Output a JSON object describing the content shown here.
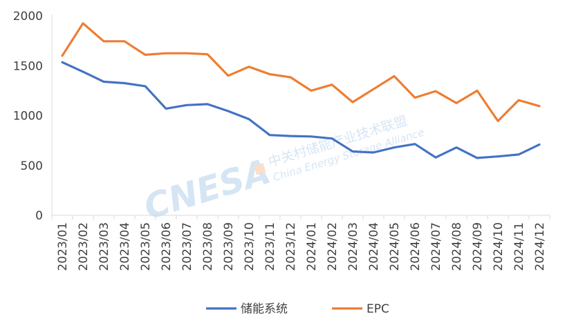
{
  "chart_data": {
    "type": "line",
    "title": "",
    "xlabel": "",
    "ylabel": "",
    "categories": [
      "2023/01",
      "2023/02",
      "2023/03",
      "2023/04",
      "2023/05",
      "2023/06",
      "2023/07",
      "2023/08",
      "2023/09",
      "2023/10",
      "2023/11",
      "2023/12",
      "2024/01",
      "2024/02",
      "2024/03",
      "2024/04",
      "2024/05",
      "2024/06",
      "2024/07",
      "2024/08",
      "2024/09",
      "2024/10",
      "2024/11",
      "2024/12"
    ],
    "ylim": [
      0,
      2000
    ],
    "yticks": [
      0,
      500,
      1000,
      1500,
      2000
    ],
    "grid": false,
    "legend_position": "bottom",
    "series": [
      {
        "name": "储能系统",
        "color": "#4472C4",
        "values": [
          1535,
          1440,
          1340,
          1325,
          1295,
          1070,
          1105,
          1115,
          1045,
          965,
          805,
          795,
          790,
          770,
          640,
          630,
          680,
          715,
          580,
          680,
          575,
          590,
          610,
          710
        ]
      },
      {
        "name": "EPC",
        "color": "#ED7D31",
        "values": [
          1600,
          1925,
          1745,
          1745,
          1610,
          1625,
          1625,
          1615,
          1400,
          1490,
          1415,
          1385,
          1250,
          1310,
          1135,
          1265,
          1395,
          1180,
          1245,
          1125,
          1250,
          945,
          1155,
          1095
        ]
      }
    ]
  },
  "watermark": {
    "logo": "CNESA",
    "cn": "中关村储能产业技术联盟",
    "en": "China Energy Storage Alliance"
  }
}
